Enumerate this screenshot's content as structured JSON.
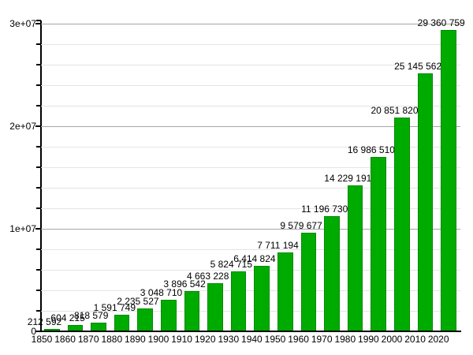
{
  "chart_data": {
    "type": "bar",
    "title": "",
    "xlabel": "",
    "ylabel": "",
    "categories": [
      "1850",
      "1860",
      "1870",
      "1880",
      "1890",
      "1900",
      "1910",
      "1920",
      "1930",
      "1940",
      "1950",
      "1960",
      "1970",
      "1980",
      "1990",
      "2000",
      "2010",
      "2020"
    ],
    "values": [
      212592,
      604215,
      818579,
      1591749,
      2235527,
      3048710,
      3896542,
      4663228,
      5824715,
      6414824,
      7711194,
      9579677,
      11196730,
      14229191,
      16986510,
      20851820,
      25145562,
      29360759
    ],
    "value_labels": [
      "212 592",
      "604 215",
      "818 579",
      "1 591 749",
      "2 235 527",
      "3 048 710",
      "3 896 542",
      "4 663 228",
      "5 824 715",
      "6 414 824",
      "7 711 194",
      "9 579 677",
      "11 196 730",
      "14 229 191",
      "16 986 510",
      "20 851 820",
      "25 145 562",
      "29 360 759"
    ],
    "y_ticks": [
      {
        "value": 0,
        "label": "0"
      },
      {
        "value": 10000000,
        "label": "1e+07"
      },
      {
        "value": 20000000,
        "label": "2e+07"
      },
      {
        "value": 30000000,
        "label": "3e+07"
      }
    ],
    "ylim": [
      0,
      30000000
    ],
    "minor_grid_step": 2000000,
    "grid": true,
    "legend": "none",
    "bar_color": "#00AB00",
    "bar_border_color": "#008A00",
    "major_grid_color": "#A6A6A6",
    "minor_grid_color": "#E4E4E4",
    "axis_color": "#000000",
    "text_color": "#000000",
    "background": "#FFFFFF"
  }
}
